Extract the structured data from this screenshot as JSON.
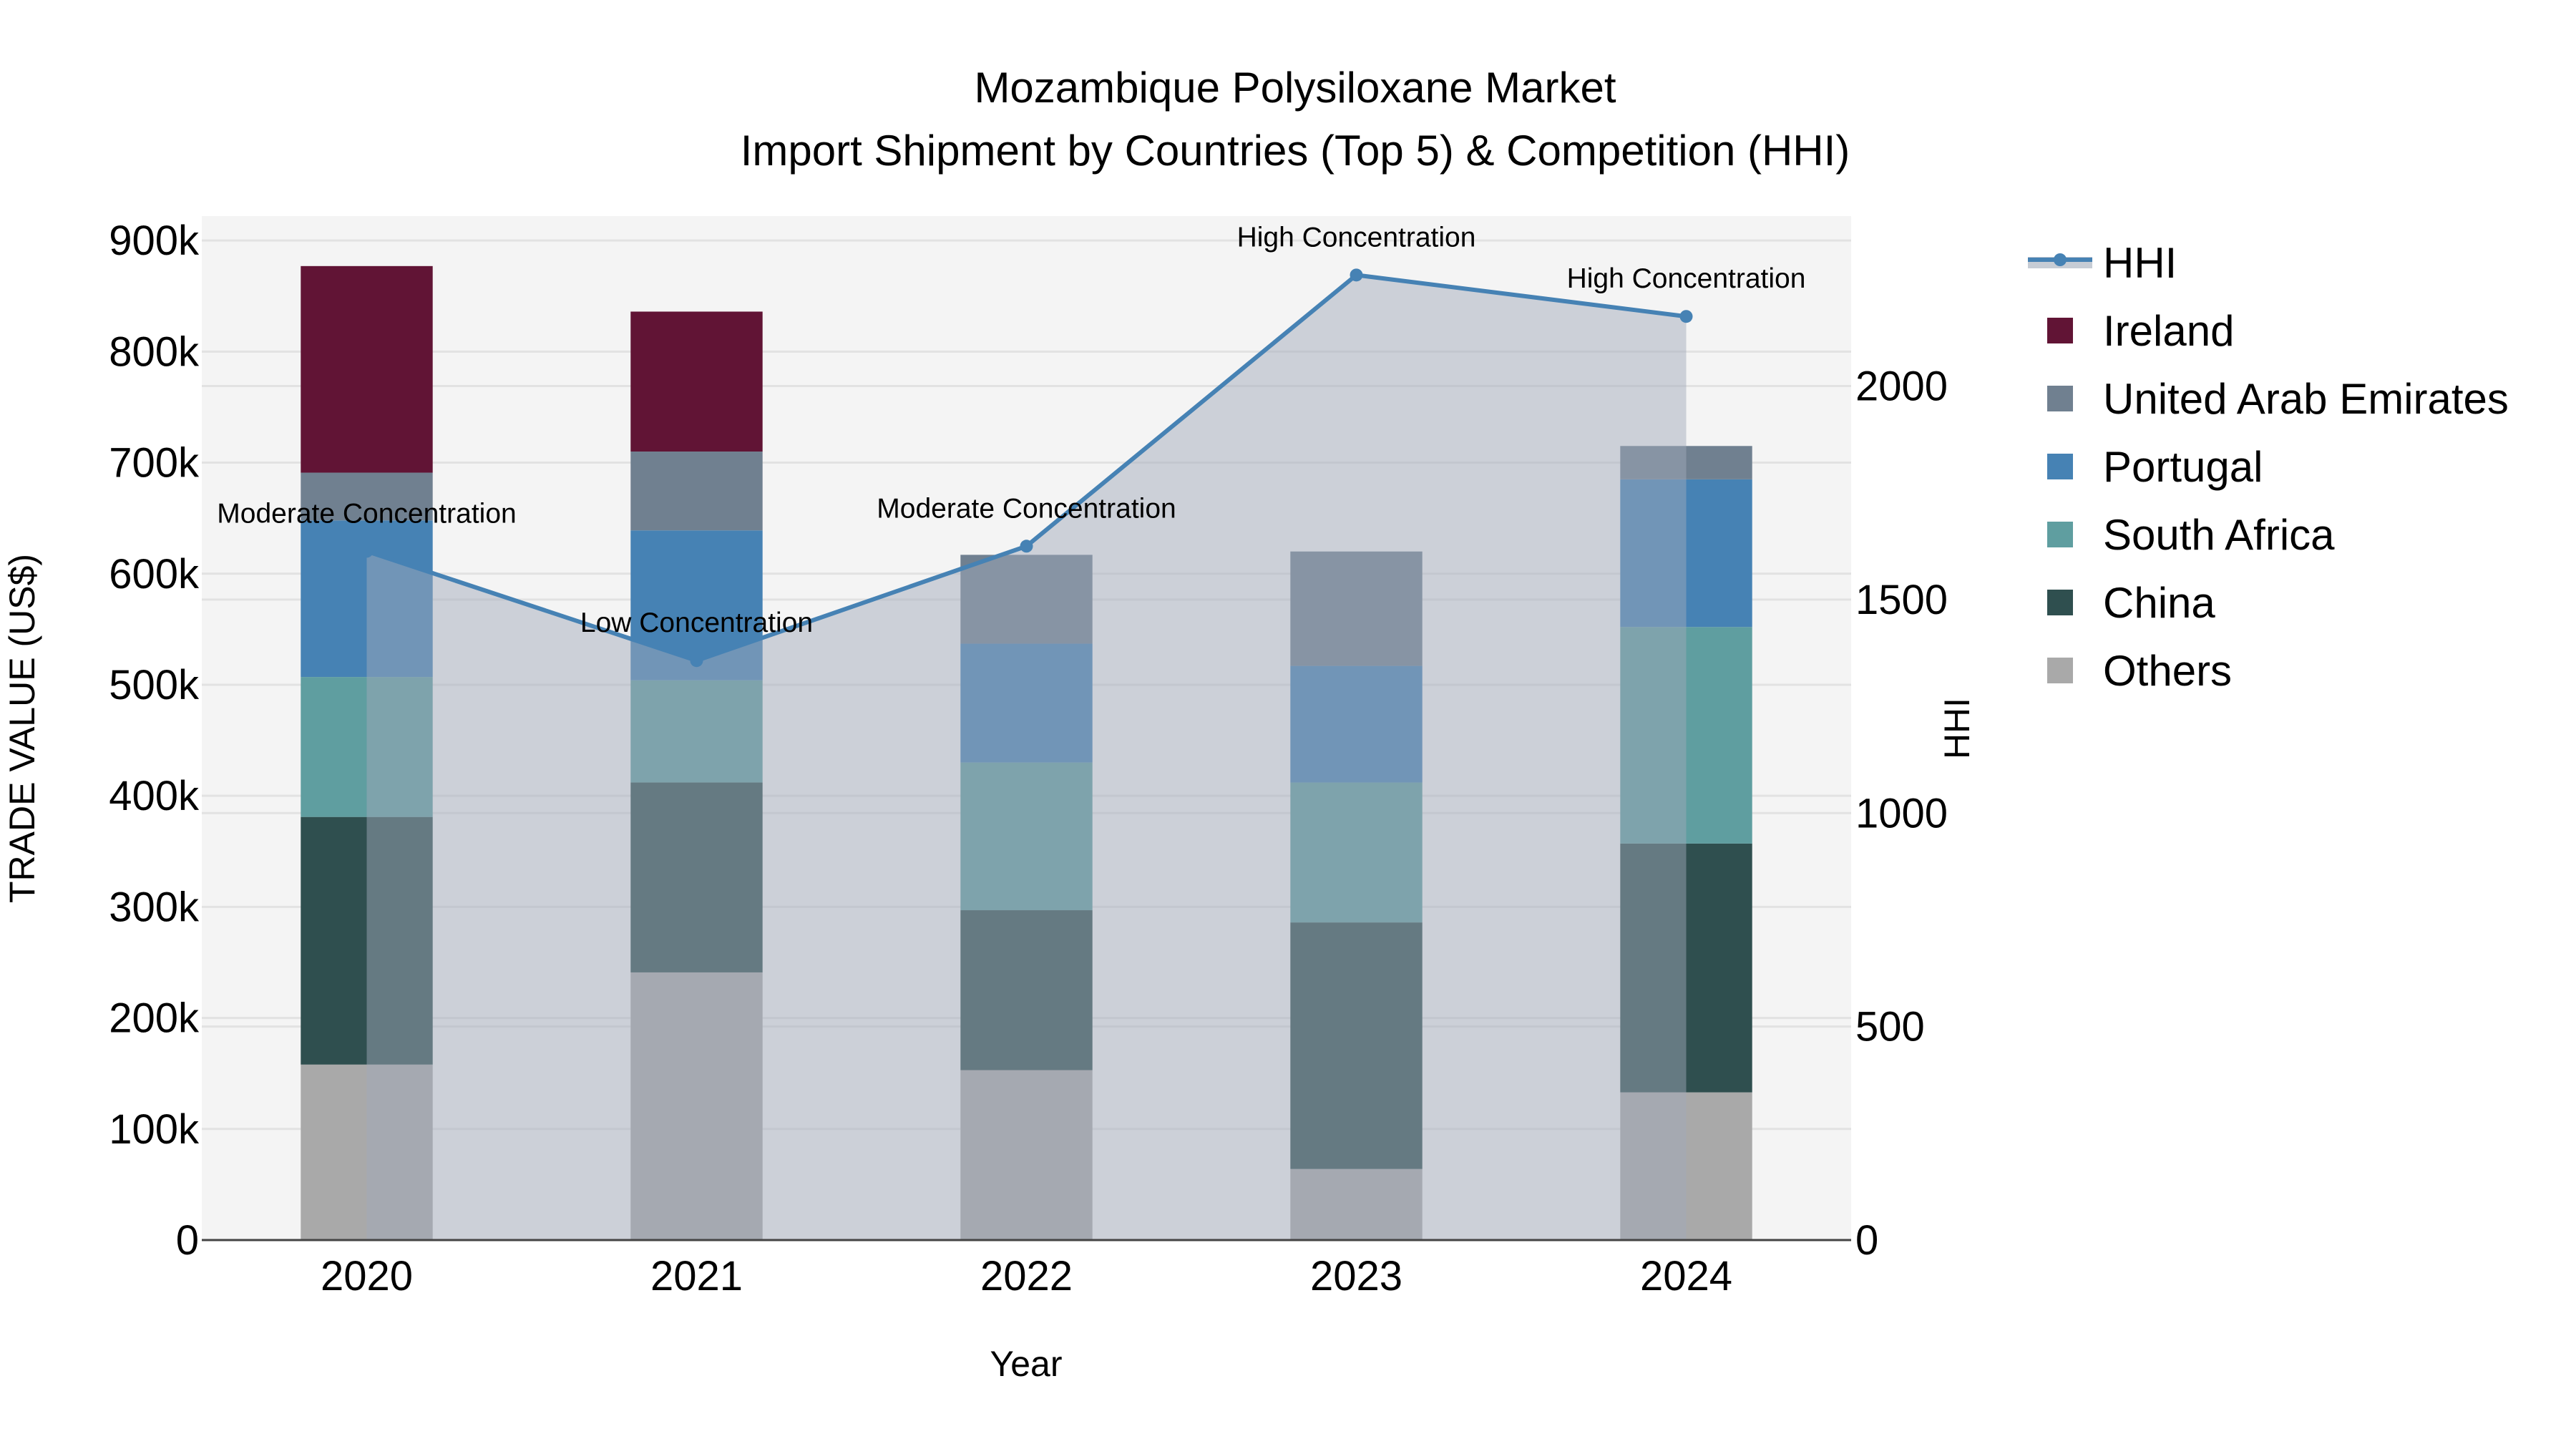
{
  "chart_data": {
    "type": "bar",
    "stacked": true,
    "title_line1": "Mozambique Polysiloxane Market",
    "title_line2": "Import Shipment by Countries (Top 5) & Competition (HHI)",
    "xlabel": "Year",
    "ylabel": "TRADE VALUE (US$)",
    "y2label": "HHI",
    "categories": [
      "2020",
      "2021",
      "2022",
      "2023",
      "2024"
    ],
    "ylim": [
      0,
      922000
    ],
    "y2lim": [
      0,
      2398
    ],
    "yticks": [
      0,
      100000,
      200000,
      300000,
      400000,
      500000,
      600000,
      700000,
      800000,
      900000
    ],
    "ytick_labels": [
      "0",
      "100k",
      "200k",
      "300k",
      "400k",
      "500k",
      "600k",
      "700k",
      "800k",
      "900k"
    ],
    "y2ticks": [
      0,
      500,
      1000,
      1500,
      2000
    ],
    "y2tick_labels": [
      "0",
      "500",
      "1000",
      "1500",
      "2000"
    ],
    "grid": true,
    "legend_position": "right",
    "series": [
      {
        "name": "Others",
        "color": "#a9a9a9",
        "values": [
          158000,
          241000,
          153000,
          64000,
          133000
        ]
      },
      {
        "name": "China",
        "color": "#2f4f4f",
        "values": [
          223000,
          171000,
          144000,
          222000,
          224000
        ]
      },
      {
        "name": "South Africa",
        "color": "#5f9ea0",
        "values": [
          126000,
          92000,
          133000,
          126000,
          195000
        ]
      },
      {
        "name": "Portugal",
        "color": "#4682b4",
        "values": [
          141000,
          135000,
          107000,
          105000,
          133000
        ]
      },
      {
        "name": "United Arab Emirates",
        "color": "#708090",
        "values": [
          43000,
          71000,
          80000,
          103000,
          30000
        ]
      },
      {
        "name": "Ireland",
        "color": "#611435",
        "values": [
          186000,
          126000,
          0,
          0,
          0
        ]
      }
    ],
    "hhi": {
      "name": "HHI",
      "color": "#4682b4",
      "values": [
        1613,
        1357,
        1625,
        2260,
        2163
      ],
      "labels": [
        "Moderate Concentration",
        "Low Concentration",
        "Moderate Concentration",
        "High Concentration",
        "High Concentration"
      ]
    },
    "legend_order": [
      "HHI",
      "Ireland",
      "United Arab Emirates",
      "Portugal",
      "South Africa",
      "China",
      "Others"
    ]
  }
}
